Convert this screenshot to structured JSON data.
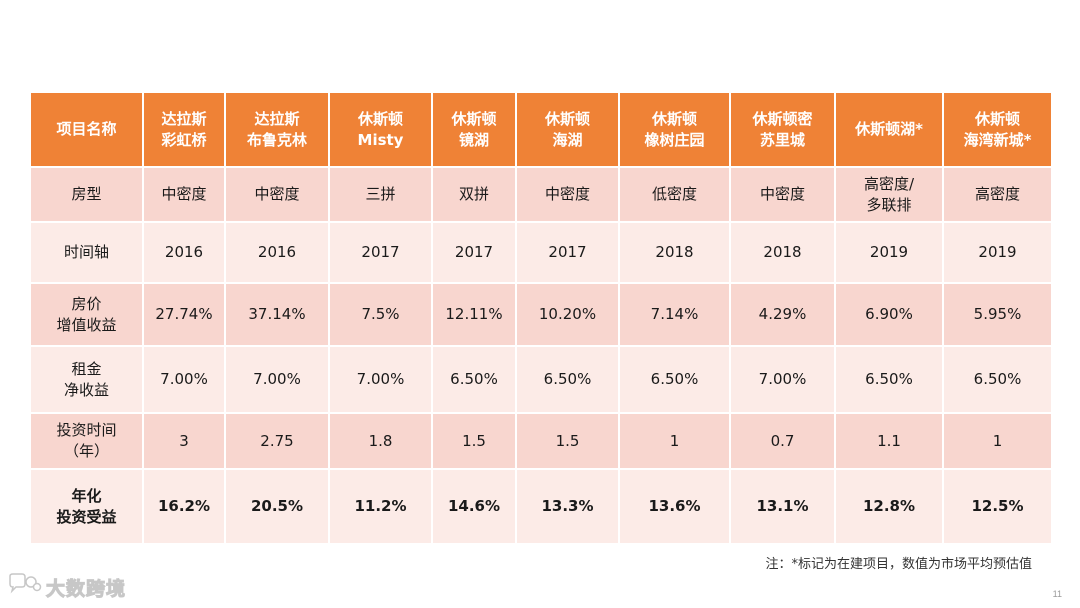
{
  "table": {
    "header": [
      "项目名称",
      "达拉斯\n彩虹桥",
      "达拉斯\n布鲁克林",
      "休斯顿\nMisty",
      "休斯顿\n镜湖",
      "休斯顿\n海湖",
      "休斯顿\n橡树庄园",
      "休斯顿密\n苏里城",
      "休斯顿湖*",
      "休斯顿\n海湾新城*"
    ],
    "rows": [
      {
        "label": "房型",
        "values": [
          "中密度",
          "中密度",
          "三拼",
          "双拼",
          "中密度",
          "低密度",
          "中密度",
          "高密度/\n多联排",
          "高密度"
        ]
      },
      {
        "label": "时间轴",
        "values": [
          "2016",
          "2016",
          "2017",
          "2017",
          "2017",
          "2018",
          "2018",
          "2019",
          "2019"
        ]
      },
      {
        "label": "房价\n增值收益",
        "values": [
          "27.74%",
          "37.14%",
          "7.5%",
          "12.11%",
          "10.20%",
          "7.14%",
          "4.29%",
          "6.90%",
          "5.95%"
        ]
      },
      {
        "label": "租金\n净收益",
        "values": [
          "7.00%",
          "7.00%",
          "7.00%",
          "6.50%",
          "6.50%",
          "6.50%",
          "7.00%",
          "6.50%",
          "6.50%"
        ]
      },
      {
        "label": "投资时间\n（年）",
        "values": [
          "3",
          "2.75",
          "1.8",
          "1.5",
          "1.5",
          "1",
          "0.7",
          "1.1",
          "1"
        ]
      },
      {
        "label": "年化\n投资受益",
        "values": [
          "16.2%",
          "20.5%",
          "11.2%",
          "14.6%",
          "13.3%",
          "13.6%",
          "13.1%",
          "12.8%",
          "12.5%"
        ]
      }
    ]
  },
  "note": "注：*标记为在建项目，数值为市场平均预估值",
  "page_number": "11",
  "watermark": {
    "text": "大数跨境",
    "icon": "chat-bubble-logo-icon"
  },
  "colors": {
    "header": "#ef8236",
    "row_dark": "#f8d6cf",
    "row_light": "#fcebe7"
  }
}
